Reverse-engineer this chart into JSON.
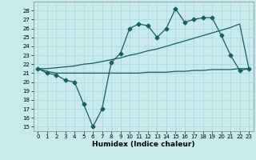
{
  "title": "",
  "xlabel": "Humidex (Indice chaleur)",
  "bg_color": "#c8eaea",
  "grid_color": "#a8d8d8",
  "line_color": "#1a6060",
  "xlim": [
    -0.5,
    23.5
  ],
  "ylim": [
    14.5,
    29.0
  ],
  "xticks": [
    0,
    1,
    2,
    3,
    4,
    5,
    6,
    7,
    8,
    9,
    10,
    11,
    12,
    13,
    14,
    15,
    16,
    17,
    18,
    19,
    20,
    21,
    22,
    23
  ],
  "yticks": [
    15,
    16,
    17,
    18,
    19,
    20,
    21,
    22,
    23,
    24,
    25,
    26,
    27,
    28
  ],
  "line1_x": [
    0,
    1,
    2,
    3,
    4,
    5,
    6,
    7,
    8,
    9,
    10,
    11,
    12,
    13,
    14,
    15,
    16,
    17,
    18,
    19,
    20,
    21,
    22,
    23
  ],
  "line1_y": [
    21.5,
    21.0,
    20.8,
    20.2,
    20.0,
    17.5,
    15.0,
    17.0,
    22.2,
    23.2,
    26.0,
    26.5,
    26.3,
    25.0,
    26.0,
    28.2,
    26.7,
    27.0,
    27.2,
    27.2,
    25.2,
    23.0,
    21.3,
    21.5
  ],
  "line2_x": [
    0,
    1,
    2,
    3,
    4,
    5,
    6,
    7,
    8,
    9,
    10,
    11,
    12,
    13,
    14,
    15,
    16,
    17,
    18,
    19,
    20,
    21,
    22,
    23
  ],
  "line2_y": [
    21.5,
    21.5,
    21.6,
    21.7,
    21.8,
    22.0,
    22.1,
    22.3,
    22.5,
    22.7,
    23.0,
    23.2,
    23.5,
    23.7,
    24.0,
    24.3,
    24.6,
    24.9,
    25.2,
    25.5,
    25.8,
    26.1,
    26.5,
    21.5
  ],
  "line3_x": [
    0,
    1,
    2,
    3,
    4,
    5,
    6,
    7,
    8,
    9,
    10,
    11,
    12,
    13,
    14,
    15,
    16,
    17,
    18,
    19,
    20,
    21,
    22,
    23
  ],
  "line3_y": [
    21.5,
    21.2,
    21.0,
    21.0,
    21.0,
    21.0,
    21.0,
    21.0,
    21.0,
    21.0,
    21.0,
    21.0,
    21.1,
    21.1,
    21.1,
    21.2,
    21.2,
    21.3,
    21.3,
    21.4,
    21.4,
    21.4,
    21.5,
    21.5
  ],
  "markersize": 2.5,
  "linewidth": 0.9,
  "tick_fontsize": 5.0,
  "xlabel_fontsize": 6.5
}
